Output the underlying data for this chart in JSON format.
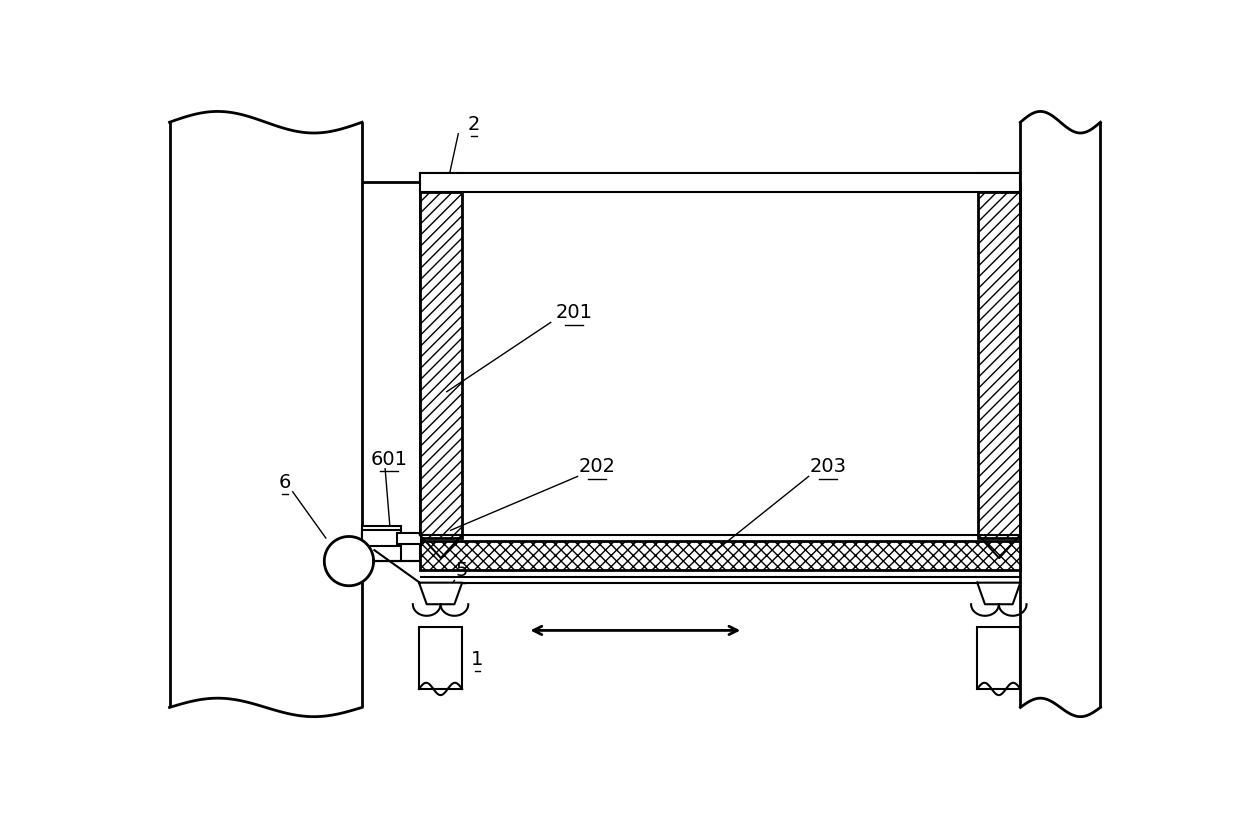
{
  "bg_color": "#ffffff",
  "line_color": "#000000",
  "fig_width": 12.39,
  "fig_height": 8.26,
  "lw": 1.5,
  "lw2": 2.0,
  "lw_thin": 1.0
}
